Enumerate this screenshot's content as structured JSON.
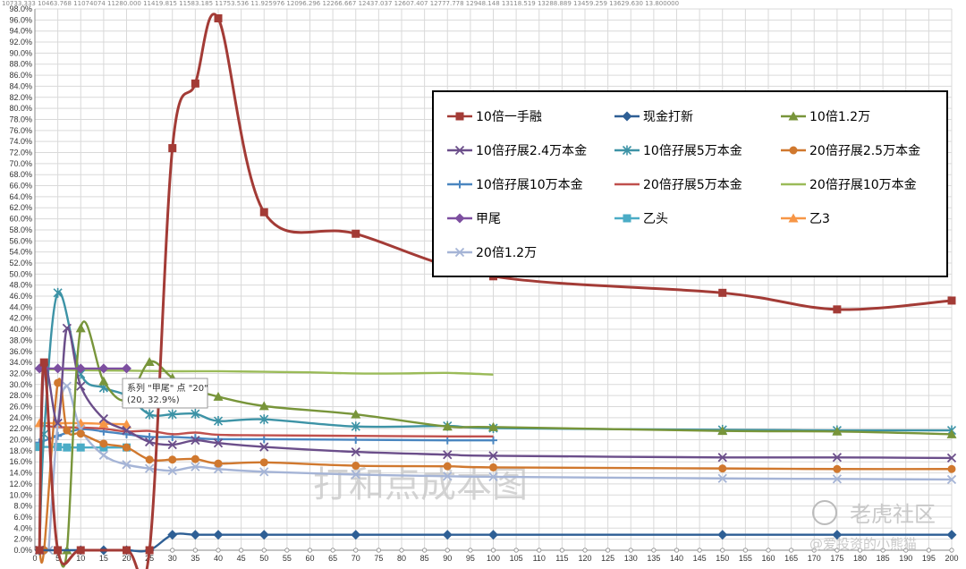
{
  "top_strip_text": "10733.333 10463.768 11074074 11280.000 11419.815 11583.185 11753.536 11.925976 12096.296 12266.667 12437.037 12607.407 12777.778 12948.148 13118.519 13288.889 13459.259 13629.630 13.800000",
  "watermark": "打和点成本图",
  "brand_name": "老虎社区",
  "brand_user": "@爱投资的小熊猫",
  "tooltip": {
    "line1": "系列 \"甲尾\" 点 \"20\"",
    "line2": "(20, 32.9%)"
  },
  "chart_data": {
    "type": "line",
    "x_ticks": [
      0,
      5,
      10,
      15,
      20,
      25,
      30,
      35,
      40,
      45,
      50,
      55,
      60,
      65,
      70,
      75,
      80,
      85,
      90,
      95,
      100,
      105,
      110,
      115,
      120,
      125,
      130,
      135,
      140,
      145,
      150,
      155,
      160,
      165,
      170,
      175,
      180,
      185,
      190,
      195,
      200
    ],
    "y_ticks": [
      "0.0%",
      "2.0%",
      "4.0%",
      "6.0%",
      "8.0%",
      "10.0%",
      "12.0%",
      "14.0%",
      "16.0%",
      "18.0%",
      "20.0%",
      "22.0%",
      "24.0%",
      "26.0%",
      "28.0%",
      "30.0%",
      "32.0%",
      "34.0%",
      "36.0%",
      "38.0%",
      "40.0%",
      "42.0%",
      "44.0%",
      "46.0%",
      "48.0%",
      "50.0%",
      "52.0%",
      "54.0%",
      "56.0%",
      "58.0%",
      "60.0%",
      "62.0%",
      "64.0%",
      "66.0%",
      "68.0%",
      "70.0%",
      "72.0%",
      "74.0%",
      "76.0%",
      "78.0%",
      "80.0%",
      "82.0%",
      "84.0%",
      "86.0%",
      "88.0%",
      "90.0%",
      "92.0%",
      "94.0%",
      "96.0%",
      "98.0%"
    ],
    "xlim": [
      0,
      200
    ],
    "ylim": [
      0,
      98
    ],
    "grid": true,
    "legend_position": "top-right",
    "series": [
      {
        "name": "10倍一手融",
        "color": "#a33b36",
        "marker": "square",
        "points": [
          [
            1,
            0
          ],
          [
            2,
            34
          ],
          [
            5,
            0
          ],
          [
            10,
            0
          ],
          [
            20,
            0
          ],
          [
            25,
            0
          ],
          [
            30,
            72.8
          ],
          [
            35,
            84.5
          ],
          [
            40,
            96.3
          ],
          [
            50,
            61.2
          ],
          [
            70,
            57.3
          ],
          [
            100,
            49.6
          ],
          [
            150,
            46.6
          ],
          [
            175,
            43.6
          ],
          [
            200,
            45.2
          ]
        ]
      },
      {
        "name": "现金打新",
        "color": "#2e5f95",
        "marker": "diamond",
        "points": [
          [
            1,
            0
          ],
          [
            5,
            0
          ],
          [
            10,
            0
          ],
          [
            15,
            0
          ],
          [
            20,
            0
          ],
          [
            25,
            0
          ],
          [
            30,
            2.8
          ],
          [
            35,
            2.8
          ],
          [
            40,
            2.8
          ],
          [
            50,
            2.8
          ],
          [
            70,
            2.8
          ],
          [
            90,
            2.8
          ],
          [
            100,
            2.8
          ],
          [
            150,
            2.8
          ],
          [
            175,
            2.8
          ],
          [
            200,
            2.8
          ]
        ]
      },
      {
        "name": "10倍1.2万",
        "color": "#78953a",
        "marker": "triangle",
        "points": [
          [
            5,
            0
          ],
          [
            7,
            0
          ],
          [
            10,
            40.2
          ],
          [
            15,
            30.6
          ],
          [
            20,
            27.2
          ],
          [
            25,
            34.1
          ],
          [
            30,
            31.2
          ],
          [
            35,
            29.1
          ],
          [
            40,
            27.8
          ],
          [
            50,
            26.1
          ],
          [
            70,
            24.6
          ],
          [
            90,
            22.4
          ],
          [
            100,
            22.3
          ],
          [
            150,
            21.6
          ],
          [
            175,
            21.5
          ],
          [
            200,
            21
          ]
        ]
      },
      {
        "name": "10倍孖展2.4万本金",
        "color": "#6b4e8a",
        "marker": "x",
        "points": [
          [
            1,
            0
          ],
          [
            2,
            33
          ],
          [
            5,
            23
          ],
          [
            7,
            40.2
          ],
          [
            10,
            29.7
          ],
          [
            15,
            23.8
          ],
          [
            20,
            21.7
          ],
          [
            25,
            19.6
          ],
          [
            30,
            19.1
          ],
          [
            35,
            19.9
          ],
          [
            40,
            19.4
          ],
          [
            50,
            18.7
          ],
          [
            70,
            17.8
          ],
          [
            90,
            17.3
          ],
          [
            100,
            17.1
          ],
          [
            150,
            16.8
          ],
          [
            175,
            16.8
          ],
          [
            200,
            16.7
          ]
        ]
      },
      {
        "name": "10倍孖展5万本金",
        "color": "#3d93a6",
        "marker": "star",
        "points": [
          [
            1,
            0
          ],
          [
            2,
            21
          ],
          [
            5,
            46.6
          ],
          [
            10,
            31.9
          ],
          [
            15,
            29.4
          ],
          [
            20,
            28
          ],
          [
            25,
            24.6
          ],
          [
            30,
            24.6
          ],
          [
            35,
            24.7
          ],
          [
            40,
            23.4
          ],
          [
            50,
            23.7
          ],
          [
            70,
            22.4
          ],
          [
            90,
            22.5
          ],
          [
            100,
            22.1
          ],
          [
            150,
            21.8
          ],
          [
            175,
            21.7
          ],
          [
            200,
            21.7
          ]
        ]
      },
      {
        "name": "20倍孖展2.5万本金",
        "color": "#d0782e",
        "marker": "circle",
        "points": [
          [
            1,
            0
          ],
          [
            2,
            0
          ],
          [
            5,
            30.3
          ],
          [
            7,
            21.7
          ],
          [
            10,
            21.1
          ],
          [
            15,
            19.3
          ],
          [
            20,
            18.6
          ],
          [
            25,
            16.4
          ],
          [
            30,
            16.4
          ],
          [
            35,
            16.5
          ],
          [
            40,
            15.7
          ],
          [
            50,
            15.9
          ],
          [
            70,
            15.3
          ],
          [
            90,
            15.2
          ],
          [
            100,
            15
          ],
          [
            150,
            14.8
          ],
          [
            175,
            14.7
          ],
          [
            200,
            14.7
          ]
        ]
      },
      {
        "name": "10倍孖展10万本金",
        "color": "#4a86c0",
        "marker": "plus",
        "points": [
          [
            1,
            19.5
          ],
          [
            5,
            20.7
          ],
          [
            10,
            21.9
          ],
          [
            15,
            21.5
          ],
          [
            20,
            21
          ],
          [
            25,
            20.5
          ],
          [
            30,
            20.5
          ],
          [
            35,
            20.3
          ],
          [
            40,
            20.1
          ],
          [
            50,
            20.1
          ],
          [
            70,
            20
          ],
          [
            90,
            19.9
          ],
          [
            100,
            19.9
          ]
        ]
      },
      {
        "name": "20倍孖展5万本金",
        "color": "#c0504d",
        "marker": "none",
        "points": [
          [
            1,
            22.6
          ],
          [
            5,
            22.3
          ],
          [
            10,
            22.2
          ],
          [
            15,
            22
          ],
          [
            20,
            21.5
          ],
          [
            25,
            21.6
          ],
          [
            30,
            21
          ],
          [
            35,
            21.3
          ],
          [
            40,
            20.9
          ],
          [
            50,
            20.8
          ],
          [
            70,
            20.7
          ],
          [
            90,
            20.6
          ],
          [
            100,
            20.6
          ]
        ]
      },
      {
        "name": "20倍孖展10万本金",
        "color": "#9bbb59",
        "marker": "none",
        "points": [
          [
            1,
            32.8
          ],
          [
            10,
            32.6
          ],
          [
            20,
            32.5
          ],
          [
            30,
            32.4
          ],
          [
            40,
            32.4
          ],
          [
            50,
            32.3
          ],
          [
            60,
            32.2
          ],
          [
            70,
            32
          ],
          [
            80,
            32
          ],
          [
            90,
            32.1
          ],
          [
            100,
            31.8
          ]
        ]
      },
      {
        "name": "甲尾",
        "color": "#7d4fa0",
        "marker": "diamond",
        "points": [
          [
            1,
            32.9
          ],
          [
            5,
            32.9
          ],
          [
            10,
            32.9
          ],
          [
            15,
            32.9
          ],
          [
            20,
            32.9
          ]
        ]
      },
      {
        "name": "乙头",
        "color": "#4bacc6",
        "marker": "square",
        "points": [
          [
            1,
            18.7
          ],
          [
            5,
            18.7
          ],
          [
            7,
            18.6
          ],
          [
            10,
            18.6
          ],
          [
            15,
            18.6
          ],
          [
            20,
            18.6
          ]
        ]
      },
      {
        "name": "乙3",
        "color": "#f79646",
        "marker": "triangle",
        "points": [
          [
            1,
            23
          ],
          [
            5,
            23
          ],
          [
            10,
            23
          ],
          [
            15,
            22.9
          ],
          [
            20,
            22.8
          ]
        ]
      },
      {
        "name": "20倍1.2万",
        "color": "#a5b4d6",
        "marker": "x",
        "points": [
          [
            3,
            0
          ],
          [
            5,
            23
          ],
          [
            7,
            29.7
          ],
          [
            10,
            21.9
          ],
          [
            15,
            17.2
          ],
          [
            20,
            15.5
          ],
          [
            25,
            14.8
          ],
          [
            30,
            14.4
          ],
          [
            35,
            15.1
          ],
          [
            40,
            14.7
          ],
          [
            50,
            14.2
          ],
          [
            70,
            13.7
          ],
          [
            90,
            13.4
          ],
          [
            100,
            13.3
          ],
          [
            150,
            13
          ],
          [
            175,
            12.9
          ],
          [
            200,
            12.8
          ]
        ]
      }
    ]
  }
}
